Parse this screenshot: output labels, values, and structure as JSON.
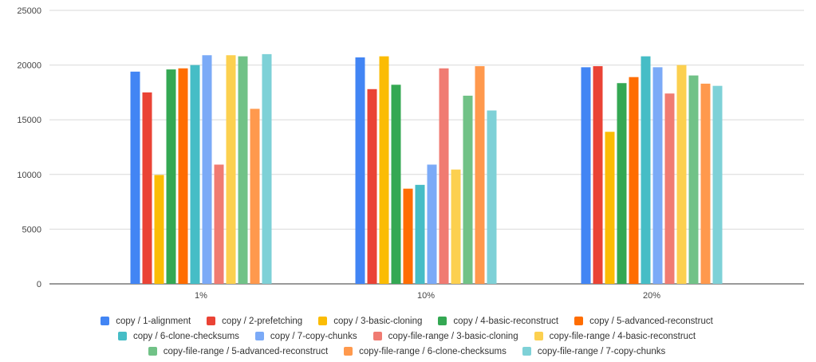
{
  "chart_data": {
    "type": "bar",
    "title": "",
    "xlabel": "",
    "ylabel": "",
    "ylim": [
      0,
      25000
    ],
    "yticks": [
      "0",
      "5000",
      "10000",
      "15000",
      "20000",
      "25000"
    ],
    "grid": true,
    "legend_position": "bottom",
    "categories": [
      "1%",
      "10%",
      "20%"
    ],
    "series": [
      {
        "name": "copy / 1-alignment",
        "color": "#4285f4",
        "values": [
          19400,
          20700,
          19800
        ]
      },
      {
        "name": "copy / 2-prefetching",
        "color": "#ea4335",
        "values": [
          17500,
          17800,
          19900
        ]
      },
      {
        "name": "copy / 3-basic-cloning",
        "color": "#fbbc04",
        "values": [
          9950,
          20800,
          13900
        ]
      },
      {
        "name": "copy / 4-basic-reconstruct",
        "color": "#34a853",
        "values": [
          19600,
          18200,
          18350
        ]
      },
      {
        "name": "copy / 5-advanced-reconstruct",
        "color": "#ff6d01",
        "values": [
          19700,
          8700,
          18900
        ]
      },
      {
        "name": "copy / 6-clone-checksums",
        "color": "#46bdc6",
        "values": [
          20000,
          9050,
          20800
        ]
      },
      {
        "name": "copy / 7-copy-chunks",
        "color": "#7baaf7",
        "values": [
          20900,
          10900,
          19800
        ]
      },
      {
        "name": "copy-file-range / 3-basic-cloning",
        "color": "#f07b72",
        "values": [
          10900,
          19700,
          17400
        ]
      },
      {
        "name": "copy-file-range / 4-basic-reconstruct",
        "color": "#fcd04f",
        "values": [
          20900,
          10450,
          20000
        ]
      },
      {
        "name": "copy-file-range / 5-advanced-reconstruct",
        "color": "#71c287",
        "values": [
          20800,
          17200,
          19050
        ]
      },
      {
        "name": "copy-file-range / 6-clone-checksums",
        "color": "#ff994d",
        "values": [
          16000,
          19900,
          18300
        ]
      },
      {
        "name": "copy-file-range / 7-copy-chunks",
        "color": "#7ed1d7",
        "values": [
          21000,
          15850,
          18100
        ]
      }
    ]
  }
}
